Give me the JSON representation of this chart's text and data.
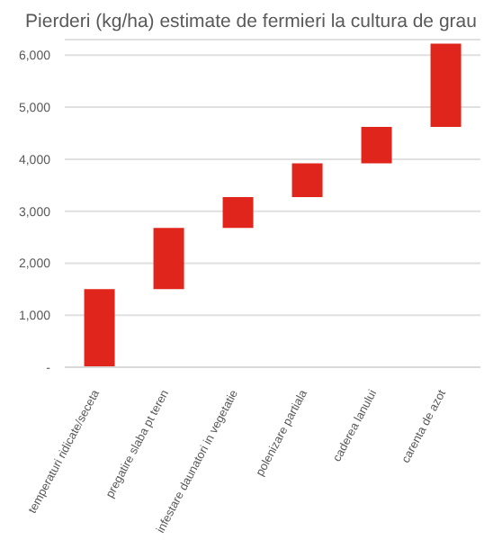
{
  "chart_data": {
    "type": "bar",
    "title": "Pierderi (kg/ha) estimate de fermieri la cultura de grau",
    "categories": [
      "temperaturi ridicate/seceta",
      "pregatire slaba pt teren",
      "infestare daunatori in vegetatie",
      "polenizare partiala",
      "caderea lanului",
      "carenta de azot"
    ],
    "base": [
      0,
      1500,
      2680,
      3270,
      3920,
      4620
    ],
    "values": [
      1500,
      1180,
      590,
      650,
      700,
      1600
    ],
    "color": "#e0261c",
    "ylim": [
      0,
      6300
    ],
    "yticks": [
      {
        "value": 0,
        "label": "-"
      },
      {
        "value": 1000,
        "label": "1,000"
      },
      {
        "value": 2000,
        "label": "2,000"
      },
      {
        "value": 3000,
        "label": "3,000"
      },
      {
        "value": 4000,
        "label": "4,000"
      },
      {
        "value": 5000,
        "label": "5,000"
      },
      {
        "value": 6000,
        "label": "6,000"
      }
    ],
    "grid": "y"
  }
}
